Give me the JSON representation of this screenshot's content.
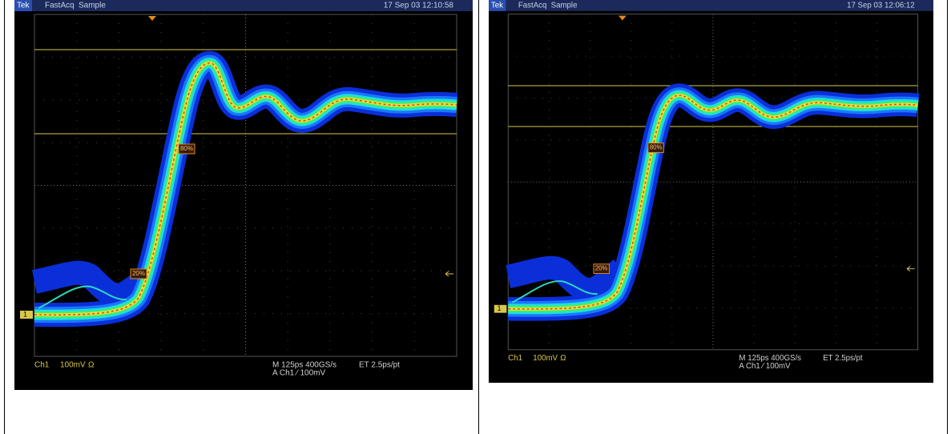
{
  "cells": [
    {
      "scope": {
        "brand": "Tek",
        "mode": "FastAcq",
        "acq": "Sample",
        "timestamp": "17 Sep 03 12:10:58",
        "ground": "1",
        "marker_high": "80%",
        "marker_low": "20%",
        "channel": "Ch1",
        "scale": "100mV",
        "ohm": "Ω",
        "timebase": "M 125ps 400GS/s",
        "resolution": "ET 2.5ps/pt",
        "trigger": "A  Ch1  ⁄  100mV"
      }
    },
    {
      "scope": {
        "brand": "Tek",
        "mode": "FastAcq",
        "acq": "Sample",
        "timestamp": "17 Sep 03 12:06:12",
        "ground": "1",
        "marker_high": "80%",
        "marker_low": "20%",
        "channel": "Ch1",
        "scale": "100mV",
        "ohm": "Ω",
        "timebase": "M 125ps 400GS/s",
        "resolution": "ET 2.5ps/pt",
        "trigger": "A  Ch1  ⁄  100mV"
      }
    }
  ]
}
